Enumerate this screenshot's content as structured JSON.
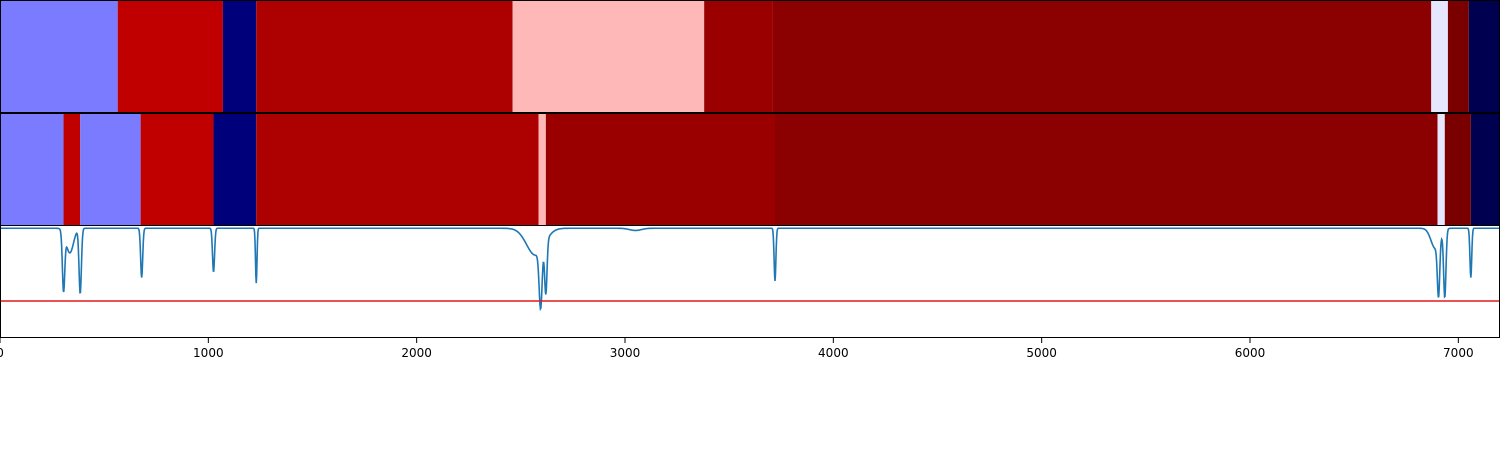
{
  "chart_data": {
    "type": "segmented-bars-with-line",
    "xlim": [
      0,
      7200
    ],
    "x_ticks": [
      "0",
      "1000",
      "2000",
      "3000",
      "4000",
      "5000",
      "6000",
      "7000"
    ],
    "grid": false,
    "bar_tracks": [
      {
        "segments": [
          {
            "start": 0,
            "end": 565,
            "color": "#7b7bff"
          },
          {
            "start": 565,
            "end": 1070,
            "color": "#c00000"
          },
          {
            "start": 1070,
            "end": 1230,
            "color": "#00007b"
          },
          {
            "start": 1230,
            "end": 2460,
            "color": "#ad0000"
          },
          {
            "start": 2460,
            "end": 3380,
            "color": "#ffb8b8"
          },
          {
            "start": 3380,
            "end": 3710,
            "color": "#9a0000"
          },
          {
            "start": 3710,
            "end": 6870,
            "color": "#8b0000"
          },
          {
            "start": 6870,
            "end": 6950,
            "color": "#e6e6ff"
          },
          {
            "start": 6950,
            "end": 7050,
            "color": "#7a0000"
          },
          {
            "start": 7050,
            "end": 7200,
            "color": "#000050"
          }
        ]
      },
      {
        "segments": [
          {
            "start": 0,
            "end": 305,
            "color": "#7b7bff"
          },
          {
            "start": 305,
            "end": 385,
            "color": "#c00000"
          },
          {
            "start": 385,
            "end": 675,
            "color": "#7b7bff"
          },
          {
            "start": 675,
            "end": 1025,
            "color": "#c00000"
          },
          {
            "start": 1025,
            "end": 1230,
            "color": "#00007b"
          },
          {
            "start": 1230,
            "end": 2585,
            "color": "#ad0000"
          },
          {
            "start": 2585,
            "end": 2620,
            "color": "#ffb8b8"
          },
          {
            "start": 2620,
            "end": 3720,
            "color": "#9a0000"
          },
          {
            "start": 3720,
            "end": 6900,
            "color": "#8b0000"
          },
          {
            "start": 6900,
            "end": 6935,
            "color": "#e6e6ff"
          },
          {
            "start": 6935,
            "end": 7060,
            "color": "#7a0000"
          },
          {
            "start": 7060,
            "end": 7200,
            "color": "#000050"
          }
        ]
      }
    ],
    "line_series": {
      "color": "#1f77b4",
      "ylim": [
        0,
        1
      ],
      "baseline": 0.98,
      "dips": [
        {
          "center": 305,
          "depth": 0.52,
          "width": 8
        },
        {
          "center": 335,
          "depth": 0.22,
          "width": 25
        },
        {
          "center": 385,
          "depth": 0.58,
          "width": 8
        },
        {
          "center": 680,
          "depth": 0.44,
          "width": 7
        },
        {
          "center": 1025,
          "depth": 0.39,
          "width": 7
        },
        {
          "center": 1230,
          "depth": 0.49,
          "width": 5
        },
        {
          "center": 2570,
          "depth": 0.24,
          "width": 60
        },
        {
          "center": 2595,
          "depth": 0.52,
          "width": 10
        },
        {
          "center": 2620,
          "depth": 0.47,
          "width": 8
        },
        {
          "center": 3050,
          "depth": 0.02,
          "width": 40
        },
        {
          "center": 3720,
          "depth": 0.47,
          "width": 6
        },
        {
          "center": 6890,
          "depth": 0.18,
          "width": 30
        },
        {
          "center": 6905,
          "depth": 0.48,
          "width": 8
        },
        {
          "center": 6935,
          "depth": 0.6,
          "width": 8
        },
        {
          "center": 7060,
          "depth": 0.44,
          "width": 6
        }
      ],
      "reference_line": {
        "y": 0.33,
        "color": "#e31a1c"
      }
    }
  }
}
